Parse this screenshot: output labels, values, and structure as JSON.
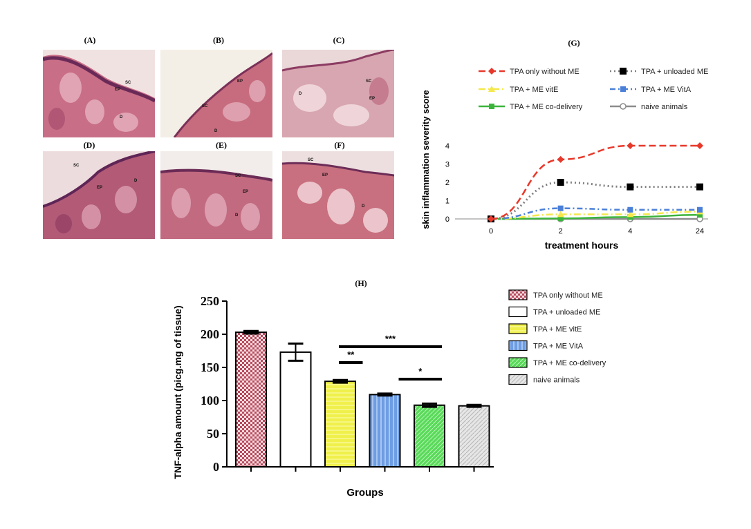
{
  "histology": {
    "panels": [
      {
        "label": "(A)",
        "annotations": [
          "SC",
          "EP",
          "D"
        ]
      },
      {
        "label": "(B)",
        "annotations": [
          "EP",
          "SC",
          "D"
        ]
      },
      {
        "label": "(C)",
        "annotations": [
          "SC",
          "EP",
          "D"
        ]
      },
      {
        "label": "(D)",
        "annotations": [
          "SC",
          "EP",
          "D"
        ]
      },
      {
        "label": "(E)",
        "annotations": [
          "SC",
          "EP",
          "D"
        ]
      },
      {
        "label": "(F)",
        "annotations": [
          "SC",
          "EP",
          "D"
        ]
      }
    ]
  },
  "chart_data": [
    {
      "type": "line",
      "panel_label": "(G)",
      "ylabel": "skin inflammation severity score",
      "xlabel": "treatment hours",
      "categories": [
        "0",
        "2",
        "4",
        "24"
      ],
      "yticks": [
        "0",
        "1",
        "2",
        "3",
        "4"
      ],
      "ylim": [
        0,
        4
      ],
      "legend_placement": "top",
      "series": [
        {
          "name": "TPA only without ME",
          "values": [
            0,
            3.25,
            4.0,
            4.0
          ],
          "color": "#e8382a",
          "marker": "diamond",
          "dash": "long-dash"
        },
        {
          "name": "TPA + unloaded ME",
          "values": [
            0,
            2.0,
            1.75,
            1.75
          ],
          "color": "#7f7f7f",
          "marker": "square-black",
          "dash": "dotted"
        },
        {
          "name": "TPA + ME vitE",
          "values": [
            0,
            0.25,
            0.25,
            0.4
          ],
          "color": "#f5e84a",
          "marker": "triangle",
          "dash": "long-dash-dot"
        },
        {
          "name": "TPA + ME VitA",
          "values": [
            0,
            0.58,
            0.5,
            0.5
          ],
          "color": "#4a7fd8",
          "marker": "square",
          "dash": "dash-dot"
        },
        {
          "name": "TPA + ME co-delivery",
          "values": [
            0,
            0.03,
            0.1,
            0.22
          ],
          "color": "#3cb43c",
          "marker": "square",
          "dash": "solid"
        },
        {
          "name": "naive animals",
          "values": [
            0,
            0,
            0,
            0
          ],
          "color": "#8c8c8c",
          "marker": "circle",
          "dash": "solid"
        }
      ]
    },
    {
      "type": "bar",
      "panel_label": "(H)",
      "ylabel": "TNF-alpha amount (picg.mg of tissue)",
      "xlabel": "Groups",
      "ylim": [
        0,
        250
      ],
      "yticks": [
        "0",
        "50",
        "100",
        "150",
        "200",
        "250"
      ],
      "legend_placement": "right",
      "categories": [
        "TPA only without ME",
        "TPA + unloaded ME",
        "TPA + ME vitE",
        "TPA + ME VitA",
        "TPA + ME co-delivery",
        "naive animals"
      ],
      "values": [
        203,
        173,
        129,
        109,
        93,
        92
      ],
      "errors": [
        2,
        13,
        2,
        1.5,
        2.5,
        1.5
      ],
      "fills": [
        "checker-red",
        "white",
        "yellow-h",
        "blue-v",
        "green-diag",
        "grey-diag"
      ],
      "colors": [
        "#c0566a",
        "#ffffff",
        "#f0f04c",
        "#7aa6e6",
        "#60e060",
        "#d0d0d0"
      ],
      "significance": [
        {
          "label": "***",
          "from": 2,
          "to": 4
        },
        {
          "label": "**",
          "from": 2,
          "to": 3
        },
        {
          "label": "*",
          "from": 3,
          "to": 4
        }
      ]
    }
  ]
}
